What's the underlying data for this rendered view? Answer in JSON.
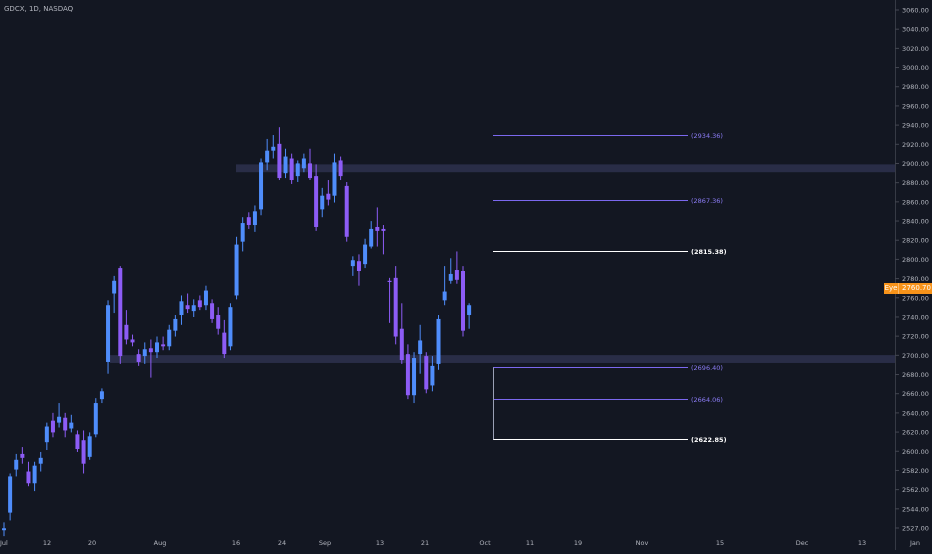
{
  "header": {
    "symbol_line": "GDCX, 1D, NASDAQ"
  },
  "price_badge": {
    "icon_name": "eye-icon",
    "icon_text": "Eye",
    "value": "2760.70",
    "color": "#f7931a"
  },
  "colors": {
    "background": "#131722",
    "bull": "#4f8dfb",
    "bear": "#8d5cf6",
    "zone": "#2a2e4a",
    "level_purple": "#7b68ee",
    "level_white": "#ffffff",
    "axis_text": "#b2b5be"
  },
  "chart_data": {
    "type": "candlestick",
    "title": "GDCX, 1D, NASDAQ",
    "ylim": [
      2520,
      3070
    ],
    "y_ticks": [
      "3060.00",
      "3040.00",
      "3020.00",
      "3000.00",
      "2980.00",
      "2960.00",
      "2940.00",
      "2920.00",
      "2900.00",
      "2880.00",
      "2860.00",
      "2840.00",
      "2820.00",
      "2800.00",
      "2780.00",
      "2760.00",
      "2740.00",
      "2720.00",
      "2700.00",
      "2680.00",
      "2660.00",
      "2640.00",
      "2620.00",
      "2600.00",
      "2582.00",
      "2562.00",
      "2544.00",
      "2527.00"
    ],
    "x_labels": [
      "Jul",
      "12",
      "20",
      "Aug",
      "16",
      "24",
      "Sep",
      "13",
      "21",
      "Oct",
      "11",
      "19",
      "Nov",
      "15",
      "Dec",
      "13",
      "Jan"
    ],
    "zones": [
      {
        "name": "resistance-zone",
        "low": 2896,
        "high": 2904
      },
      {
        "name": "support-zone",
        "low": 2701,
        "high": 2709
      }
    ],
    "levels": [
      {
        "value": 2934.36,
        "label": "(2934.36)",
        "style": "purple"
      },
      {
        "value": 2867.36,
        "label": "(2867.36)",
        "style": "purple"
      },
      {
        "value": 2815.38,
        "label": "(2815.38)",
        "style": "white"
      },
      {
        "value": 2696.4,
        "label": "(2696.40)",
        "style": "purple"
      },
      {
        "value": 2664.06,
        "label": "(2664.06)",
        "style": "purple"
      },
      {
        "value": 2622.85,
        "label": "(2622.85)",
        "style": "white"
      }
    ],
    "last_price": 2760.7,
    "candles": [
      {
        "o": 2530,
        "h": 2538,
        "l": 2524,
        "c": 2532
      },
      {
        "o": 2548,
        "h": 2588,
        "l": 2540,
        "c": 2585
      },
      {
        "o": 2592,
        "h": 2608,
        "l": 2585,
        "c": 2602
      },
      {
        "o": 2608,
        "h": 2615,
        "l": 2598,
        "c": 2604
      },
      {
        "o": 2590,
        "h": 2600,
        "l": 2575,
        "c": 2578
      },
      {
        "o": 2578,
        "h": 2600,
        "l": 2570,
        "c": 2596
      },
      {
        "o": 2598,
        "h": 2610,
        "l": 2590,
        "c": 2604
      },
      {
        "o": 2620,
        "h": 2640,
        "l": 2612,
        "c": 2636
      },
      {
        "o": 2642,
        "h": 2650,
        "l": 2625,
        "c": 2630
      },
      {
        "o": 2640,
        "h": 2660,
        "l": 2635,
        "c": 2646
      },
      {
        "o": 2645,
        "h": 2650,
        "l": 2625,
        "c": 2632
      },
      {
        "o": 2634,
        "h": 2648,
        "l": 2630,
        "c": 2640
      },
      {
        "o": 2628,
        "h": 2632,
        "l": 2610,
        "c": 2613
      },
      {
        "o": 2622,
        "h": 2632,
        "l": 2588,
        "c": 2598
      },
      {
        "o": 2605,
        "h": 2630,
        "l": 2602,
        "c": 2626
      },
      {
        "o": 2628,
        "h": 2665,
        "l": 2625,
        "c": 2660
      },
      {
        "o": 2664,
        "h": 2675,
        "l": 2660,
        "c": 2672
      },
      {
        "o": 2702,
        "h": 2765,
        "l": 2690,
        "c": 2760
      },
      {
        "o": 2772,
        "h": 2790,
        "l": 2752,
        "c": 2785
      },
      {
        "o": 2798,
        "h": 2800,
        "l": 2700,
        "c": 2708
      },
      {
        "o": 2740,
        "h": 2755,
        "l": 2720,
        "c": 2725
      },
      {
        "o": 2725,
        "h": 2730,
        "l": 2718,
        "c": 2722
      },
      {
        "o": 2710,
        "h": 2715,
        "l": 2698,
        "c": 2702
      },
      {
        "o": 2708,
        "h": 2722,
        "l": 2700,
        "c": 2715
      },
      {
        "o": 2716,
        "h": 2725,
        "l": 2686,
        "c": 2712
      },
      {
        "o": 2712,
        "h": 2728,
        "l": 2706,
        "c": 2722
      },
      {
        "o": 2720,
        "h": 2728,
        "l": 2714,
        "c": 2718
      },
      {
        "o": 2718,
        "h": 2740,
        "l": 2714,
        "c": 2735
      },
      {
        "o": 2734,
        "h": 2750,
        "l": 2728,
        "c": 2746
      },
      {
        "o": 2750,
        "h": 2770,
        "l": 2740,
        "c": 2764
      },
      {
        "o": 2760,
        "h": 2772,
        "l": 2752,
        "c": 2756
      },
      {
        "o": 2754,
        "h": 2766,
        "l": 2748,
        "c": 2760
      },
      {
        "o": 2765,
        "h": 2770,
        "l": 2755,
        "c": 2758
      },
      {
        "o": 2760,
        "h": 2780,
        "l": 2755,
        "c": 2775
      },
      {
        "o": 2762,
        "h": 2766,
        "l": 2742,
        "c": 2746
      },
      {
        "o": 2750,
        "h": 2758,
        "l": 2730,
        "c": 2736
      },
      {
        "o": 2732,
        "h": 2745,
        "l": 2706,
        "c": 2710
      },
      {
        "o": 2718,
        "h": 2762,
        "l": 2714,
        "c": 2758
      },
      {
        "o": 2770,
        "h": 2830,
        "l": 2766,
        "c": 2822
      },
      {
        "o": 2825,
        "h": 2850,
        "l": 2815,
        "c": 2844
      },
      {
        "o": 2850,
        "h": 2855,
        "l": 2838,
        "c": 2842
      },
      {
        "o": 2842,
        "h": 2862,
        "l": 2835,
        "c": 2856
      },
      {
        "o": 2858,
        "h": 2910,
        "l": 2852,
        "c": 2906
      },
      {
        "o": 2906,
        "h": 2930,
        "l": 2898,
        "c": 2918
      },
      {
        "o": 2918,
        "h": 2934,
        "l": 2910,
        "c": 2922
      },
      {
        "o": 2925,
        "h": 2942,
        "l": 2888,
        "c": 2890
      },
      {
        "o": 2895,
        "h": 2920,
        "l": 2890,
        "c": 2912
      },
      {
        "o": 2910,
        "h": 2915,
        "l": 2884,
        "c": 2888
      },
      {
        "o": 2892,
        "h": 2908,
        "l": 2886,
        "c": 2905
      },
      {
        "o": 2900,
        "h": 2915,
        "l": 2896,
        "c": 2910
      },
      {
        "o": 2905,
        "h": 2920,
        "l": 2888,
        "c": 2890
      },
      {
        "o": 2892,
        "h": 2904,
        "l": 2836,
        "c": 2840
      },
      {
        "o": 2858,
        "h": 2880,
        "l": 2850,
        "c": 2872
      },
      {
        "o": 2874,
        "h": 2888,
        "l": 2862,
        "c": 2868
      },
      {
        "o": 2872,
        "h": 2915,
        "l": 2865,
        "c": 2906
      },
      {
        "o": 2908,
        "h": 2912,
        "l": 2888,
        "c": 2892
      },
      {
        "o": 2882,
        "h": 2886,
        "l": 2825,
        "c": 2830
      },
      {
        "o": 2800,
        "h": 2810,
        "l": 2790,
        "c": 2806
      },
      {
        "o": 2805,
        "h": 2812,
        "l": 2780,
        "c": 2795
      },
      {
        "o": 2802,
        "h": 2828,
        "l": 2798,
        "c": 2822
      },
      {
        "o": 2820,
        "h": 2846,
        "l": 2818,
        "c": 2838
      },
      {
        "o": 2840,
        "h": 2860,
        "l": 2820,
        "c": 2836
      },
      {
        "o": 2838,
        "h": 2842,
        "l": 2812,
        "c": 2836
      },
      {
        "o": 2785,
        "h": 2788,
        "l": 2742,
        "c": 2784
      },
      {
        "o": 2788,
        "h": 2800,
        "l": 2720,
        "c": 2728
      },
      {
        "o": 2736,
        "h": 2762,
        "l": 2700,
        "c": 2704
      },
      {
        "o": 2710,
        "h": 2720,
        "l": 2664,
        "c": 2668
      },
      {
        "o": 2668,
        "h": 2712,
        "l": 2660,
        "c": 2706
      },
      {
        "o": 2710,
        "h": 2740,
        "l": 2690,
        "c": 2724
      },
      {
        "o": 2708,
        "h": 2712,
        "l": 2670,
        "c": 2674
      },
      {
        "o": 2678,
        "h": 2708,
        "l": 2672,
        "c": 2698
      },
      {
        "o": 2700,
        "h": 2750,
        "l": 2694,
        "c": 2746
      },
      {
        "o": 2765,
        "h": 2800,
        "l": 2760,
        "c": 2774
      },
      {
        "o": 2785,
        "h": 2808,
        "l": 2782,
        "c": 2792
      },
      {
        "o": 2796,
        "h": 2815,
        "l": 2782,
        "c": 2786
      },
      {
        "o": 2795,
        "h": 2800,
        "l": 2728,
        "c": 2734
      },
      {
        "o": 2750,
        "h": 2762,
        "l": 2736,
        "c": 2760
      }
    ]
  }
}
